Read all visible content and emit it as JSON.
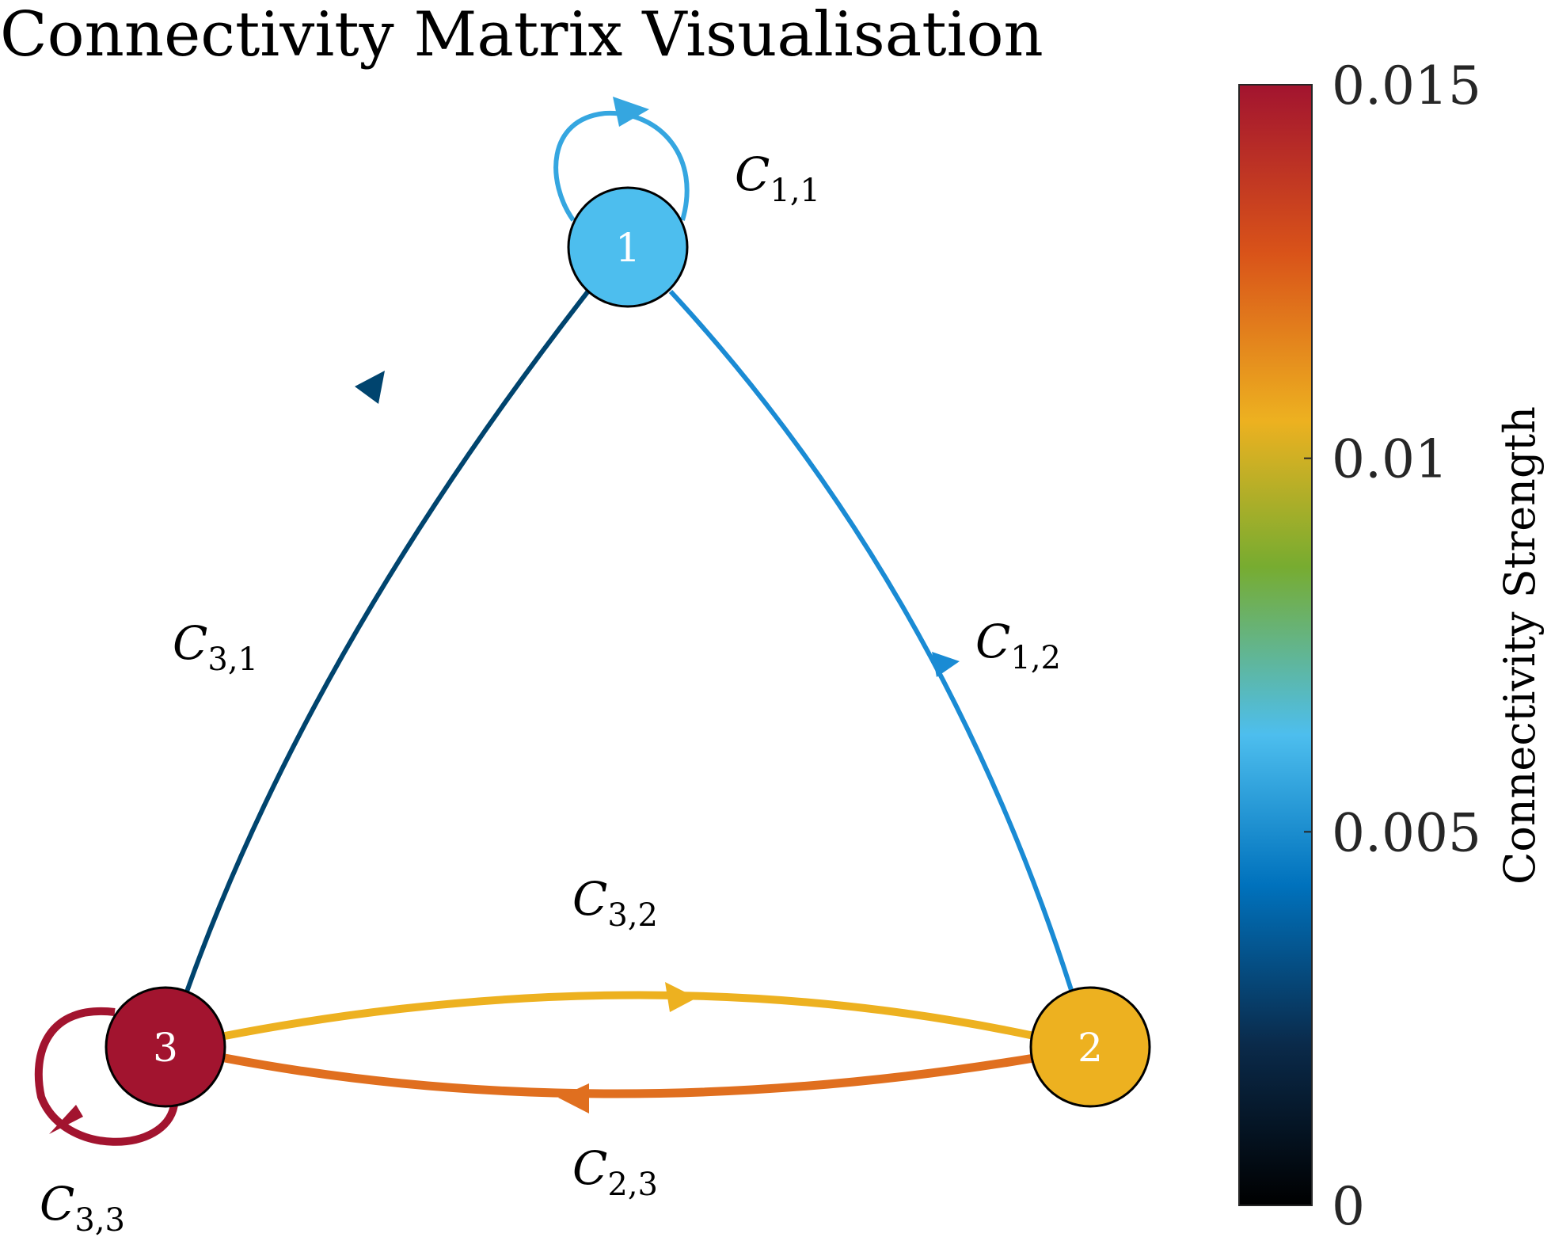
{
  "title": "Connectivity Matrix Visualisation",
  "nodes": [
    {
      "id": "1",
      "label": "1",
      "color": "#4DBEEE"
    },
    {
      "id": "2",
      "label": "2",
      "color": "#EDB120"
    },
    {
      "id": "3",
      "label": "3",
      "color": "#A2142F"
    }
  ],
  "edges": [
    {
      "from": "1",
      "to": "1",
      "label_main": "C",
      "label_sub": "1,1",
      "color": "#35A6E0"
    },
    {
      "from": "1",
      "to": "2",
      "label_main": "C",
      "label_sub": "1,2",
      "color": "#1A8BD4"
    },
    {
      "from": "3",
      "to": "1",
      "label_main": "C",
      "label_sub": "3,1",
      "color": "#00446E"
    },
    {
      "from": "3",
      "to": "2",
      "label_main": "C",
      "label_sub": "3,2",
      "color": "#EDB120"
    },
    {
      "from": "2",
      "to": "3",
      "label_main": "C",
      "label_sub": "2,3",
      "color": "#E06F1F"
    },
    {
      "from": "3",
      "to": "3",
      "label_main": "C",
      "label_sub": "3,3",
      "color": "#A2142F"
    }
  ],
  "colorbar": {
    "label": "Connectivity Strength",
    "min": 0,
    "max": 0.015,
    "ticks": [
      {
        "value": 0,
        "label": "0"
      },
      {
        "value": 0.005,
        "label": "0.005"
      },
      {
        "value": 0.01,
        "label": "0.01"
      },
      {
        "value": 0.015,
        "label": "0.015"
      }
    ],
    "stops": [
      "#000000",
      "#0A2A4A",
      "#0072BD",
      "#4DBEEE",
      "#77AC30",
      "#EDB120",
      "#D95319",
      "#A2142F"
    ]
  }
}
